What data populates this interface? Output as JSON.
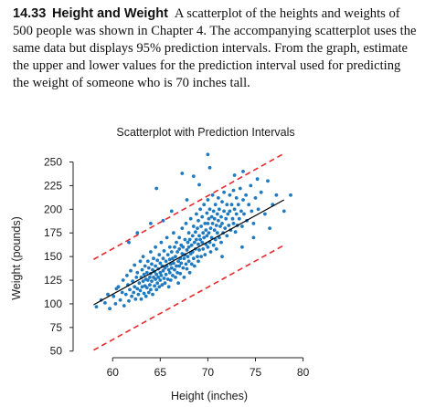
{
  "problem": {
    "number": "14.33",
    "title": "Height and Weight",
    "text": "A scatterplot of the heights and weights of 500 people was shown in Chapter 4. The accompanying scatterplot uses the same data but displays 95% prediction intervals. From the graph, estimate the upper and lower values for the prediction interval used for predicting the weight of someone who is 70 inches tall."
  },
  "chart_data": {
    "type": "scatter",
    "title": "Scatterplot with Prediction Intervals",
    "xlabel": "Height (inches)",
    "ylabel": "Weight (pounds)",
    "xlim": [
      57,
      81
    ],
    "ylim": [
      43,
      265
    ],
    "xticks": [
      60,
      65,
      70,
      75,
      80
    ],
    "yticks": [
      50,
      75,
      100,
      125,
      150,
      175,
      200,
      225,
      250
    ],
    "regression_line": {
      "x": [
        58,
        78
      ],
      "y": [
        99,
        210
      ]
    },
    "prediction_band_upper": {
      "x": [
        58,
        78
      ],
      "y": [
        147,
        259
      ]
    },
    "prediction_band_lower": {
      "x": [
        58,
        78
      ],
      "y": [
        51,
        162
      ]
    },
    "grid": false,
    "colors": {
      "points": "#1f7ac0",
      "band": "#e8282b",
      "line": "#000000"
    },
    "points": [
      [
        58.3,
        97
      ],
      [
        58.8,
        104
      ],
      [
        59.2,
        101
      ],
      [
        59.5,
        110
      ],
      [
        59.7,
        95
      ],
      [
        60.1,
        108
      ],
      [
        60.3,
        100
      ],
      [
        60.4,
        116
      ],
      [
        60.6,
        118
      ],
      [
        60.8,
        104
      ],
      [
        61.0,
        112
      ],
      [
        61.1,
        125
      ],
      [
        61.2,
        98
      ],
      [
        61.4,
        110
      ],
      [
        61.5,
        130
      ],
      [
        61.6,
        120
      ],
      [
        61.7,
        103
      ],
      [
        61.8,
        115
      ],
      [
        61.9,
        135
      ],
      [
        62.0,
        108
      ],
      [
        62.1,
        124
      ],
      [
        62.2,
        112
      ],
      [
        62.3,
        141
      ],
      [
        62.3,
        118
      ],
      [
        62.4,
        105
      ],
      [
        62.5,
        128
      ],
      [
        62.6,
        116
      ],
      [
        62.6,
        133
      ],
      [
        62.7,
        110
      ],
      [
        62.8,
        122
      ],
      [
        62.9,
        145
      ],
      [
        62.9,
        114
      ],
      [
        63.0,
        128
      ],
      [
        63.0,
        105
      ],
      [
        63.1,
        136
      ],
      [
        63.1,
        118
      ],
      [
        63.2,
        124
      ],
      [
        63.2,
        150
      ],
      [
        63.3,
        111
      ],
      [
        63.3,
        131
      ],
      [
        63.4,
        119
      ],
      [
        63.4,
        140
      ],
      [
        63.5,
        126
      ],
      [
        63.5,
        108
      ],
      [
        63.6,
        133
      ],
      [
        63.6,
        117
      ],
      [
        63.7,
        145
      ],
      [
        63.7,
        125
      ],
      [
        63.8,
        112
      ],
      [
        63.8,
        138
      ],
      [
        63.9,
        128
      ],
      [
        63.9,
        120
      ],
      [
        64.0,
        155
      ],
      [
        64.0,
        132
      ],
      [
        64.0,
        115
      ],
      [
        64.1,
        142
      ],
      [
        64.1,
        124
      ],
      [
        64.2,
        136
      ],
      [
        64.2,
        110
      ],
      [
        64.3,
        128
      ],
      [
        64.3,
        148
      ],
      [
        64.4,
        119
      ],
      [
        64.4,
        134
      ],
      [
        64.5,
        160
      ],
      [
        64.5,
        126
      ],
      [
        64.5,
        140
      ],
      [
        64.6,
        115
      ],
      [
        64.6,
        131
      ],
      [
        64.7,
        146
      ],
      [
        64.7,
        122
      ],
      [
        64.8,
        137
      ],
      [
        64.8,
        128
      ],
      [
        64.9,
        152
      ],
      [
        64.9,
        118
      ],
      [
        65.0,
        133
      ],
      [
        65.0,
        143
      ],
      [
        65.0,
        125
      ],
      [
        65.1,
        165
      ],
      [
        65.1,
        130
      ],
      [
        65.2,
        140
      ],
      [
        65.2,
        120
      ],
      [
        65.3,
        148
      ],
      [
        65.3,
        135
      ],
      [
        65.4,
        127
      ],
      [
        65.4,
        156
      ],
      [
        65.5,
        138
      ],
      [
        65.5,
        122
      ],
      [
        65.6,
        145
      ],
      [
        65.6,
        131
      ],
      [
        65.7,
        170
      ],
      [
        65.7,
        140
      ],
      [
        65.8,
        126
      ],
      [
        65.8,
        152
      ],
      [
        65.9,
        136
      ],
      [
        65.9,
        118
      ],
      [
        66.0,
        147
      ],
      [
        66.0,
        133
      ],
      [
        66.0,
        160
      ],
      [
        66.1,
        142
      ],
      [
        66.1,
        125
      ],
      [
        66.2,
        155
      ],
      [
        66.2,
        138
      ],
      [
        66.3,
        148
      ],
      [
        66.3,
        130
      ],
      [
        66.4,
        175
      ],
      [
        66.4,
        143
      ],
      [
        66.5,
        136
      ],
      [
        66.5,
        160
      ],
      [
        66.6,
        128
      ],
      [
        66.6,
        150
      ],
      [
        66.7,
        140
      ],
      [
        66.7,
        165
      ],
      [
        66.8,
        133
      ],
      [
        66.8,
        155
      ],
      [
        66.9,
        145
      ],
      [
        66.9,
        122
      ],
      [
        67.0,
        158
      ],
      [
        67.0,
        140
      ],
      [
        67.0,
        170
      ],
      [
        67.1,
        148
      ],
      [
        67.1,
        132
      ],
      [
        67.2,
        162
      ],
      [
        67.2,
        143
      ],
      [
        67.3,
        153
      ],
      [
        67.3,
        180
      ],
      [
        67.4,
        138
      ],
      [
        67.4,
        160
      ],
      [
        67.5,
        148
      ],
      [
        67.5,
        128
      ],
      [
        67.6,
        168
      ],
      [
        67.6,
        152
      ],
      [
        67.7,
        142
      ],
      [
        67.7,
        185
      ],
      [
        67.8,
        157
      ],
      [
        67.8,
        137
      ],
      [
        67.9,
        165
      ],
      [
        67.9,
        150
      ],
      [
        68.0,
        175
      ],
      [
        68.0,
        145
      ],
      [
        68.0,
        160
      ],
      [
        68.1,
        133
      ],
      [
        68.1,
        168
      ],
      [
        68.2,
        153
      ],
      [
        68.2,
        190
      ],
      [
        68.3,
        162
      ],
      [
        68.3,
        142
      ],
      [
        68.4,
        172
      ],
      [
        68.4,
        155
      ],
      [
        68.5,
        148
      ],
      [
        68.5,
        182
      ],
      [
        68.6,
        165
      ],
      [
        68.6,
        140
      ],
      [
        68.7,
        176
      ],
      [
        68.7,
        158
      ],
      [
        68.8,
        195
      ],
      [
        68.8,
        168
      ],
      [
        68.9,
        150
      ],
      [
        68.9,
        180
      ],
      [
        69.0,
        163
      ],
      [
        69.0,
        145
      ],
      [
        69.0,
        188
      ],
      [
        69.1,
        172
      ],
      [
        69.1,
        157
      ],
      [
        69.2,
        200
      ],
      [
        69.2,
        168
      ],
      [
        69.3,
        150
      ],
      [
        69.3,
        182
      ],
      [
        69.4,
        165
      ],
      [
        69.4,
        192
      ],
      [
        69.5,
        175
      ],
      [
        69.5,
        158
      ],
      [
        69.6,
        205
      ],
      [
        69.6,
        170
      ],
      [
        69.7,
        185
      ],
      [
        69.7,
        152
      ],
      [
        69.8,
        178
      ],
      [
        69.8,
        163
      ],
      [
        69.9,
        196
      ],
      [
        69.9,
        172
      ],
      [
        70.0,
        185
      ],
      [
        70.0,
        160
      ],
      [
        70.0,
        210
      ],
      [
        70.1,
        175
      ],
      [
        70.1,
        190
      ],
      [
        70.2,
        165
      ],
      [
        70.2,
        200
      ],
      [
        70.3,
        180
      ],
      [
        70.3,
        155
      ],
      [
        70.4,
        192
      ],
      [
        70.4,
        170
      ],
      [
        70.5,
        215
      ],
      [
        70.5,
        185
      ],
      [
        70.6,
        162
      ],
      [
        70.6,
        198
      ],
      [
        70.7,
        178
      ],
      [
        70.7,
        190
      ],
      [
        70.8,
        168
      ],
      [
        70.8,
        205
      ],
      [
        70.9,
        183
      ],
      [
        70.9,
        158
      ],
      [
        71.0,
        195
      ],
      [
        71.0,
        175
      ],
      [
        71.1,
        212
      ],
      [
        71.1,
        188
      ],
      [
        71.2,
        170
      ],
      [
        71.2,
        200
      ],
      [
        71.3,
        182
      ],
      [
        71.4,
        192
      ],
      [
        71.4,
        165
      ],
      [
        71.5,
        208
      ],
      [
        71.5,
        185
      ],
      [
        71.6,
        175
      ],
      [
        71.7,
        198
      ],
      [
        71.7,
        218
      ],
      [
        71.8,
        180
      ],
      [
        71.9,
        190
      ],
      [
        72.0,
        205
      ],
      [
        72.0,
        172
      ],
      [
        72.1,
        195
      ],
      [
        72.2,
        183
      ],
      [
        72.3,
        215
      ],
      [
        72.3,
        198
      ],
      [
        72.4,
        178
      ],
      [
        72.5,
        205
      ],
      [
        72.6,
        190
      ],
      [
        72.7,
        220
      ],
      [
        72.7,
        185
      ],
      [
        72.8,
        200
      ],
      [
        72.9,
        176
      ],
      [
        73.0,
        212
      ],
      [
        73.0,
        195
      ],
      [
        73.1,
        183
      ],
      [
        73.2,
        205
      ],
      [
        73.3,
        190
      ],
      [
        73.4,
        222
      ],
      [
        73.5,
        198
      ],
      [
        73.6,
        182
      ],
      [
        73.7,
        210
      ],
      [
        73.8,
        195
      ],
      [
        74.0,
        215
      ],
      [
        74.1,
        188
      ],
      [
        74.3,
        205
      ],
      [
        74.5,
        225
      ],
      [
        74.6,
        198
      ],
      [
        74.8,
        185
      ],
      [
        75.0,
        212
      ],
      [
        75.3,
        200
      ],
      [
        75.6,
        218
      ],
      [
        76.0,
        195
      ],
      [
        76.3,
        230
      ],
      [
        76.8,
        205
      ],
      [
        77.2,
        215
      ],
      [
        78.0,
        198
      ],
      [
        65.3,
        188
      ],
      [
        66.2,
        198
      ],
      [
        64.0,
        185
      ],
      [
        67.8,
        210
      ],
      [
        69.1,
        226
      ],
      [
        68.5,
        235
      ],
      [
        70.2,
        244
      ],
      [
        72.8,
        236
      ],
      [
        75.2,
        232
      ],
      [
        73.7,
        240
      ],
      [
        62.6,
        175
      ],
      [
        61.7,
        165
      ],
      [
        74.8,
        170
      ],
      [
        76.5,
        180
      ],
      [
        71.5,
        150
      ],
      [
        70.0,
        258
      ],
      [
        64.6,
        222
      ],
      [
        67.3,
        238
      ],
      [
        78.7,
        215
      ],
      [
        73.6,
        160
      ]
    ]
  }
}
